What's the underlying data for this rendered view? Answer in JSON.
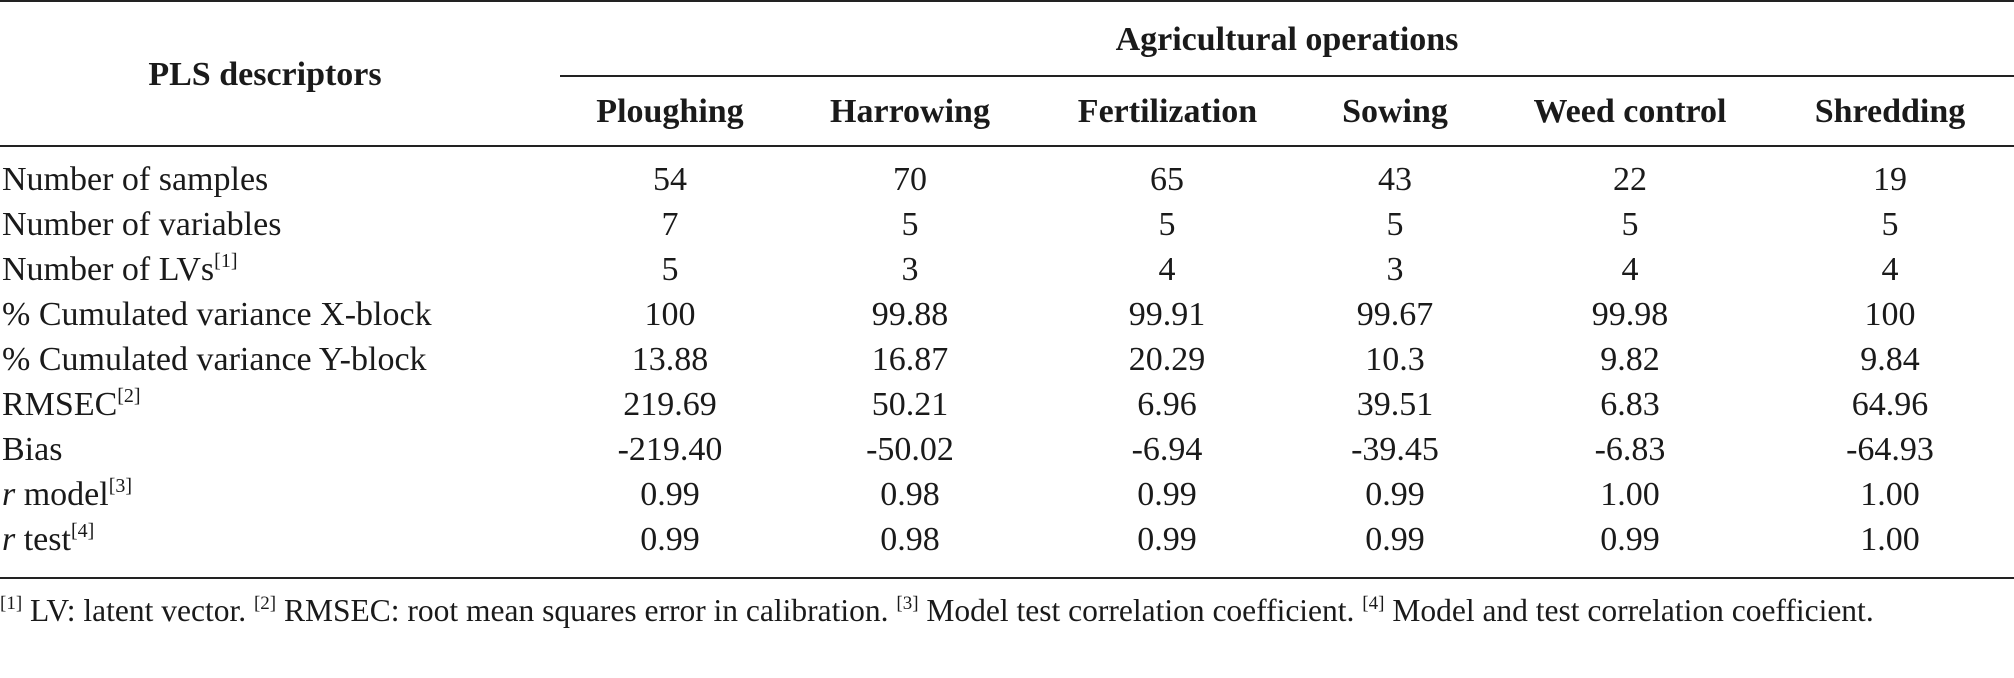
{
  "table": {
    "row_header": "PLS descriptors",
    "group_header": "Agricultural operations",
    "columns": [
      "Ploughing",
      "Harrowing",
      "Fertilization",
      "Sowing",
      "Weed control",
      "Shredding"
    ],
    "rows": [
      {
        "label": "Number of samples",
        "sup": "",
        "values": [
          "54",
          "70",
          "65",
          "43",
          "22",
          "19"
        ]
      },
      {
        "label": "Number of variables",
        "sup": "",
        "values": [
          "7",
          "5",
          "5",
          "5",
          "5",
          "5"
        ]
      },
      {
        "label": "Number of LVs",
        "sup": "[1]",
        "values": [
          "5",
          "3",
          "4",
          "3",
          "4",
          "4"
        ]
      },
      {
        "label": "% Cumulated variance X-block",
        "sup": "",
        "values": [
          "100",
          "99.88",
          "99.91",
          "99.67",
          "99.98",
          "100"
        ]
      },
      {
        "label": "% Cumulated variance Y-block",
        "sup": "",
        "values": [
          "13.88",
          "16.87",
          "20.29",
          "10.3",
          "9.82",
          "9.84"
        ]
      },
      {
        "label": "RMSEC",
        "sup": "[2]",
        "values": [
          "219.69",
          "50.21",
          "6.96",
          "39.51",
          "6.83",
          "64.96"
        ]
      },
      {
        "label": "Bias",
        "sup": "",
        "values": [
          "-219.40",
          "-50.02",
          "-6.94",
          "-39.45",
          "-6.83",
          "-64.93"
        ]
      },
      {
        "label_italic": "r",
        "label": " model",
        "sup": "[3]",
        "values": [
          "0.99",
          "0.98",
          "0.99",
          "0.99",
          "1.00",
          "1.00"
        ]
      },
      {
        "label_italic": "r",
        "label": " test",
        "sup": "[4]",
        "values": [
          "0.99",
          "0.98",
          "0.99",
          "0.99",
          "0.99",
          "1.00"
        ]
      }
    ]
  },
  "footnotes": [
    {
      "marker": "[1]",
      "text": " LV: latent vector. "
    },
    {
      "marker": "[2]",
      "text": " RMSEC: root mean squares error in calibration. "
    },
    {
      "marker": "[3]",
      "text": " Model test correlation coefficient. "
    },
    {
      "marker": "[4]",
      "text": " Model and test correlation coefficient."
    }
  ]
}
